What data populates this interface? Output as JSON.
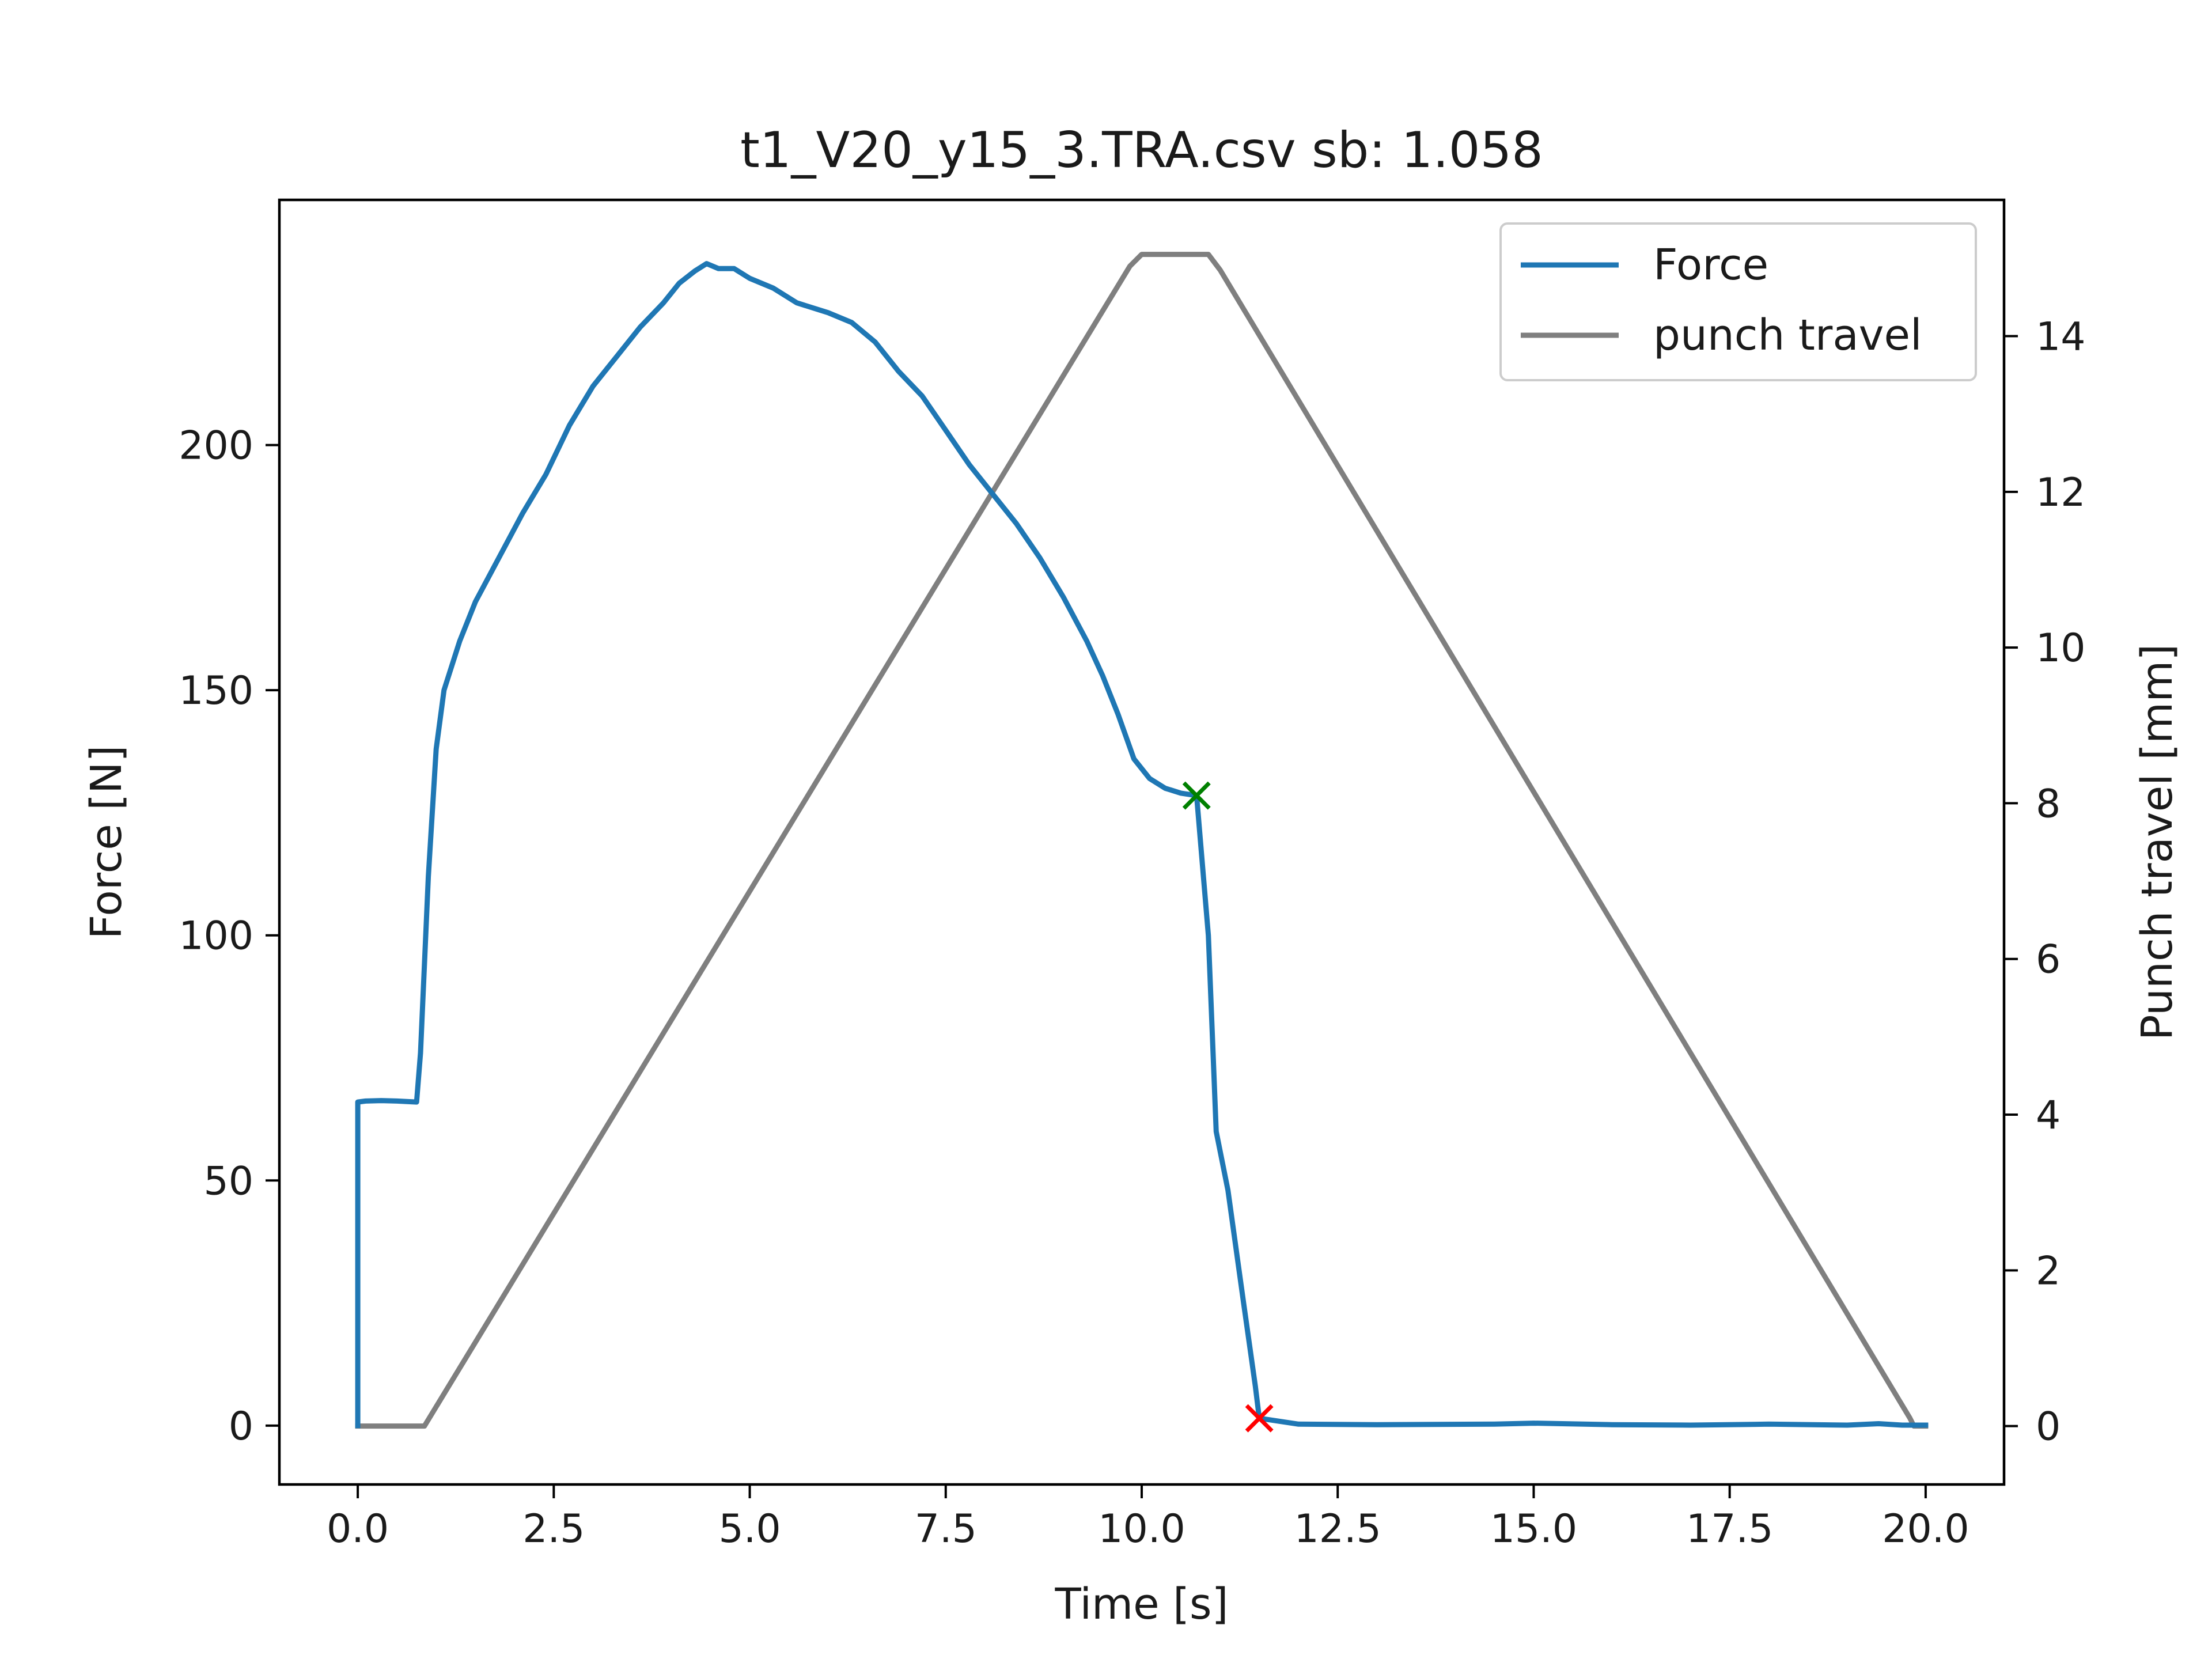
{
  "chart_data": {
    "type": "line",
    "title": "t1_V20_y15_3.TRA.csv sb: 1.058",
    "xlabel": "Time [s]",
    "ylabel": "Force [N]",
    "y2label": "Punch travel [mm]",
    "xlim": [
      -1.0,
      21.0
    ],
    "ylim": [
      -12,
      250
    ],
    "y2lim": [
      -0.75,
      15.75
    ],
    "x_ticks": [
      0.0,
      2.5,
      5.0,
      7.5,
      10.0,
      12.5,
      15.0,
      17.5,
      20.0
    ],
    "x_tick_labels": [
      "0.0",
      "2.5",
      "5.0",
      "7.5",
      "10.0",
      "12.5",
      "15.0",
      "17.5",
      "20.0"
    ],
    "y_ticks": [
      0,
      50,
      100,
      150,
      200
    ],
    "y_tick_labels": [
      "0",
      "50",
      "100",
      "150",
      "200"
    ],
    "y2_ticks": [
      0,
      2,
      4,
      6,
      8,
      10,
      12,
      14
    ],
    "y2_tick_labels": [
      "0",
      "2",
      "4",
      "6",
      "8",
      "10",
      "12",
      "14"
    ],
    "legend_position": "top-right",
    "grid": false,
    "series": [
      {
        "name": "Force",
        "axis": "left",
        "color": "#1f77b4",
        "points": [
          [
            0.0,
            0
          ],
          [
            0.0,
            66
          ],
          [
            0.1,
            66.2
          ],
          [
            0.3,
            66.3
          ],
          [
            0.5,
            66.2
          ],
          [
            0.75,
            66
          ],
          [
            0.8,
            76
          ],
          [
            0.9,
            112
          ],
          [
            1.0,
            138
          ],
          [
            1.1,
            150
          ],
          [
            1.3,
            160
          ],
          [
            1.5,
            168
          ],
          [
            1.8,
            177
          ],
          [
            2.1,
            186
          ],
          [
            2.4,
            194
          ],
          [
            2.7,
            204
          ],
          [
            3.0,
            212
          ],
          [
            3.3,
            218
          ],
          [
            3.6,
            224
          ],
          [
            3.9,
            229
          ],
          [
            4.1,
            233
          ],
          [
            4.3,
            235.5
          ],
          [
            4.45,
            237
          ],
          [
            4.6,
            236
          ],
          [
            4.8,
            236
          ],
          [
            5.0,
            234
          ],
          [
            5.3,
            232
          ],
          [
            5.6,
            229
          ],
          [
            6.0,
            227
          ],
          [
            6.3,
            225
          ],
          [
            6.6,
            221
          ],
          [
            6.9,
            215
          ],
          [
            7.2,
            210
          ],
          [
            7.5,
            203
          ],
          [
            7.8,
            196
          ],
          [
            8.1,
            190
          ],
          [
            8.4,
            184
          ],
          [
            8.7,
            177
          ],
          [
            9.0,
            169
          ],
          [
            9.3,
            160
          ],
          [
            9.5,
            153
          ],
          [
            9.7,
            145
          ],
          [
            9.9,
            136
          ],
          [
            10.1,
            132
          ],
          [
            10.3,
            130
          ],
          [
            10.5,
            129
          ],
          [
            10.7,
            128.5
          ],
          [
            10.85,
            100
          ],
          [
            10.95,
            60
          ],
          [
            11.1,
            48
          ],
          [
            11.3,
            25
          ],
          [
            11.45,
            8
          ],
          [
            11.5,
            1.5
          ],
          [
            12.0,
            0.3
          ],
          [
            13.0,
            0.2
          ],
          [
            14.5,
            0.3
          ],
          [
            15.0,
            0.5
          ],
          [
            16.0,
            0.2
          ],
          [
            17.0,
            0.1
          ],
          [
            18.0,
            0.3
          ],
          [
            19.0,
            0.1
          ],
          [
            19.4,
            0.4
          ],
          [
            19.7,
            0.1
          ],
          [
            20.0,
            0.1
          ]
        ]
      },
      {
        "name": "punch travel",
        "axis": "right",
        "color": "#7f7f7f",
        "points": [
          [
            0.0,
            0.0
          ],
          [
            0.85,
            0.0
          ],
          [
            9.85,
            14.9
          ],
          [
            10.0,
            15.05
          ],
          [
            10.85,
            15.05
          ],
          [
            11.0,
            14.85
          ],
          [
            19.8,
            0.1
          ],
          [
            19.85,
            0.0
          ],
          [
            20.0,
            0.0
          ]
        ]
      }
    ],
    "markers": [
      {
        "x": 10.7,
        "y": 128.5,
        "color": "#008000",
        "symbol": "x"
      },
      {
        "x": 11.5,
        "y": 1.5,
        "color": "#ff0000",
        "symbol": "x"
      }
    ]
  }
}
